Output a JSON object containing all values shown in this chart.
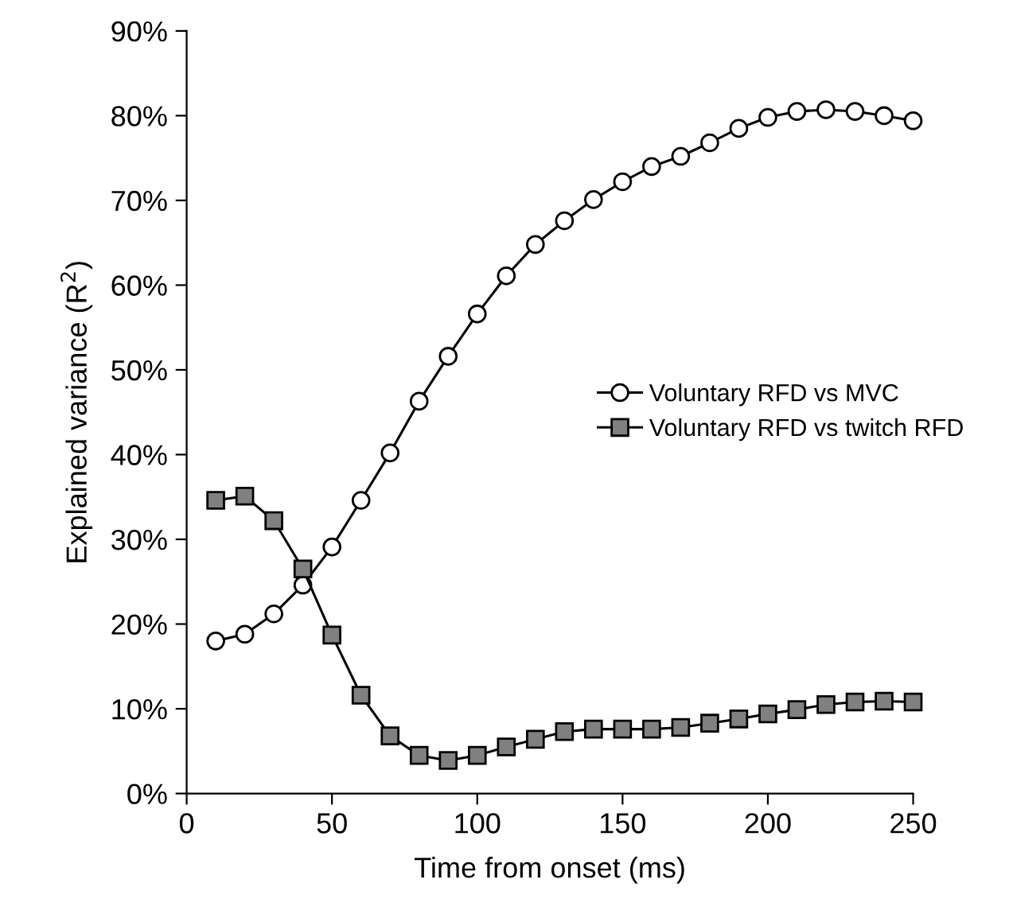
{
  "chart_data": {
    "type": "line",
    "xlabel": "Time from onset (ms)",
    "ylabel": "Explained variance (R$^{2}$)",
    "x": [
      10,
      20,
      30,
      40,
      50,
      60,
      70,
      80,
      90,
      100,
      110,
      120,
      130,
      140,
      150,
      160,
      170,
      180,
      190,
      200,
      210,
      220,
      230,
      240,
      250
    ],
    "series": [
      {
        "name": "Voluntary RFD vs MVC",
        "color": "#ffffff",
        "marker": "circle",
        "values": [
          18,
          18.8,
          21.2,
          24.6,
          29.1,
          34.6,
          40.2,
          46.3,
          51.6,
          56.6,
          61.1,
          64.8,
          67.6,
          70.1,
          72.2,
          74,
          75.2,
          76.8,
          78.5,
          79.8,
          80.5,
          80.7,
          80.5,
          80,
          79.4
        ]
      },
      {
        "name": "Voluntary RFD vs twitch RFD",
        "color": "#808080",
        "marker": "square",
        "values": [
          34.6,
          35.1,
          32.2,
          26.5,
          18.7,
          11.6,
          6.8,
          4.5,
          3.9,
          4.5,
          5.5,
          6.4,
          7.3,
          7.6,
          7.6,
          7.6,
          7.8,
          8.3,
          8.8,
          9.4,
          9.9,
          10.5,
          10.8,
          10.9,
          10.8
        ]
      }
    ],
    "xlim": [
      0,
      250
    ],
    "xticks": [
      0,
      50,
      100,
      150,
      200,
      250
    ],
    "ylim": [
      0,
      90
    ],
    "yticks": [
      {
        "value": 0,
        "label": "0%"
      },
      {
        "value": 10,
        "label": "10%"
      },
      {
        "value": 20,
        "label": "20%"
      },
      {
        "value": 30,
        "label": "30%"
      },
      {
        "value": 40,
        "label": "40%"
      },
      {
        "value": 50,
        "label": "50%"
      },
      {
        "value": 60,
        "label": "60%"
      },
      {
        "value": 70,
        "label": "70%"
      },
      {
        "value": 80,
        "label": "80%"
      },
      {
        "value": 90,
        "label": "90%"
      }
    ],
    "grid": false,
    "legend": "right",
    "line_style": "solid"
  }
}
